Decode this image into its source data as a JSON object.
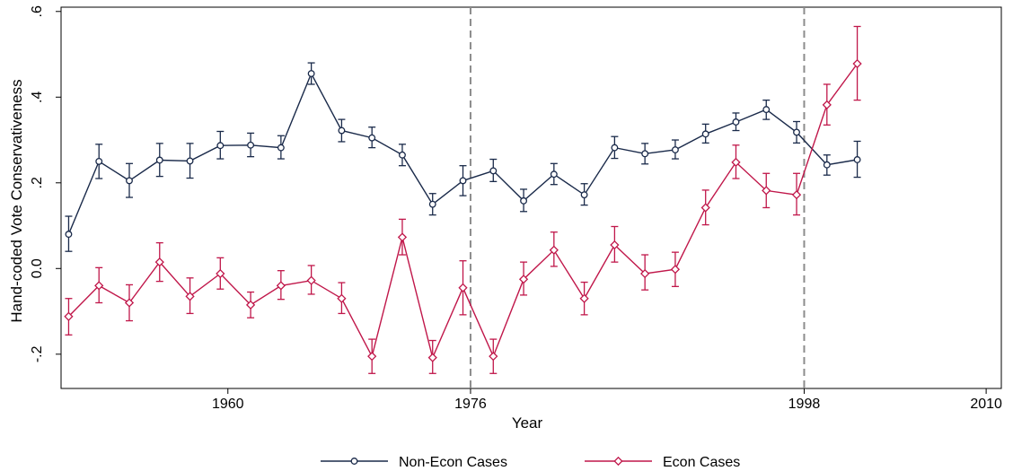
{
  "chart_data": {
    "type": "line",
    "title": "",
    "xlabel": "Year",
    "ylabel": "Hand-coded Vote Conservativeness",
    "xlim": [
      1949,
      2011
    ],
    "ylim": [
      -0.28,
      0.61
    ],
    "xticks": [
      1960,
      1976,
      1998,
      2010
    ],
    "xtick_labels": [
      "1960",
      "1976",
      "1998",
      "2010"
    ],
    "yticks": [
      -0.2,
      0,
      0.2,
      0.4,
      0.6
    ],
    "ytick_labels": [
      "-.2",
      "0.0",
      ".2",
      ".4",
      ".6"
    ],
    "reference_lines_x": [
      1976,
      1998
    ],
    "grid": false,
    "legend_position": "bottom",
    "x": [
      1949.5,
      1951.5,
      1953.5,
      1955.5,
      1957.5,
      1959.5,
      1961.5,
      1963.5,
      1965.5,
      1967.5,
      1969.5,
      1971.5,
      1973.5,
      1975.5,
      1977.5,
      1979.5,
      1981.5,
      1983.5,
      1985.5,
      1987.5,
      1989.5,
      1991.5,
      1993.5,
      1995.5,
      1997.5,
      1999.5,
      2001.5
    ],
    "series": [
      {
        "name": "Non-Econ Cases",
        "color": "#1a2a4a",
        "marker": "circle",
        "values": [
          0.08,
          0.25,
          0.205,
          0.253,
          0.251,
          0.287,
          0.288,
          0.282,
          0.455,
          0.322,
          0.305,
          0.265,
          0.15,
          0.205,
          0.228,
          0.158,
          0.22,
          0.172,
          0.282,
          0.268,
          0.277,
          0.314,
          0.342,
          0.371,
          0.318,
          0.242,
          0.254
        ],
        "lower": [
          0.04,
          0.21,
          0.166,
          0.215,
          0.211,
          0.256,
          0.261,
          0.256,
          0.43,
          0.296,
          0.282,
          0.24,
          0.125,
          0.17,
          0.203,
          0.133,
          0.196,
          0.148,
          0.257,
          0.244,
          0.256,
          0.293,
          0.322,
          0.348,
          0.293,
          0.218,
          0.213
        ],
        "upper": [
          0.122,
          0.29,
          0.245,
          0.292,
          0.292,
          0.32,
          0.316,
          0.31,
          0.48,
          0.348,
          0.33,
          0.29,
          0.175,
          0.24,
          0.255,
          0.185,
          0.245,
          0.198,
          0.308,
          0.292,
          0.3,
          0.337,
          0.363,
          0.393,
          0.343,
          0.265,
          0.297
        ]
      },
      {
        "name": "Econ Cases",
        "color": "#c0174a",
        "marker": "diamond",
        "values": [
          -0.112,
          -0.04,
          -0.08,
          0.015,
          -0.065,
          -0.012,
          -0.085,
          -0.04,
          -0.028,
          -0.07,
          -0.205,
          0.073,
          -0.208,
          -0.045,
          -0.205,
          -0.025,
          0.043,
          -0.07,
          0.055,
          -0.012,
          -0.002,
          0.142,
          0.248,
          0.182,
          0.172,
          0.382,
          0.478
        ],
        "lower": [
          -0.155,
          -0.08,
          -0.122,
          -0.03,
          -0.105,
          -0.048,
          -0.115,
          -0.072,
          -0.06,
          -0.105,
          -0.245,
          0.032,
          -0.245,
          -0.108,
          -0.245,
          -0.062,
          0.005,
          -0.108,
          0.015,
          -0.05,
          -0.042,
          0.102,
          0.21,
          0.142,
          0.125,
          0.335,
          0.393
        ],
        "upper": [
          -0.07,
          0.002,
          -0.038,
          0.06,
          -0.022,
          0.025,
          -0.055,
          -0.005,
          0.007,
          -0.033,
          -0.165,
          0.115,
          -0.168,
          0.018,
          -0.165,
          0.015,
          0.085,
          -0.032,
          0.098,
          0.032,
          0.038,
          0.183,
          0.288,
          0.222,
          0.222,
          0.43,
          0.565
        ]
      }
    ]
  }
}
